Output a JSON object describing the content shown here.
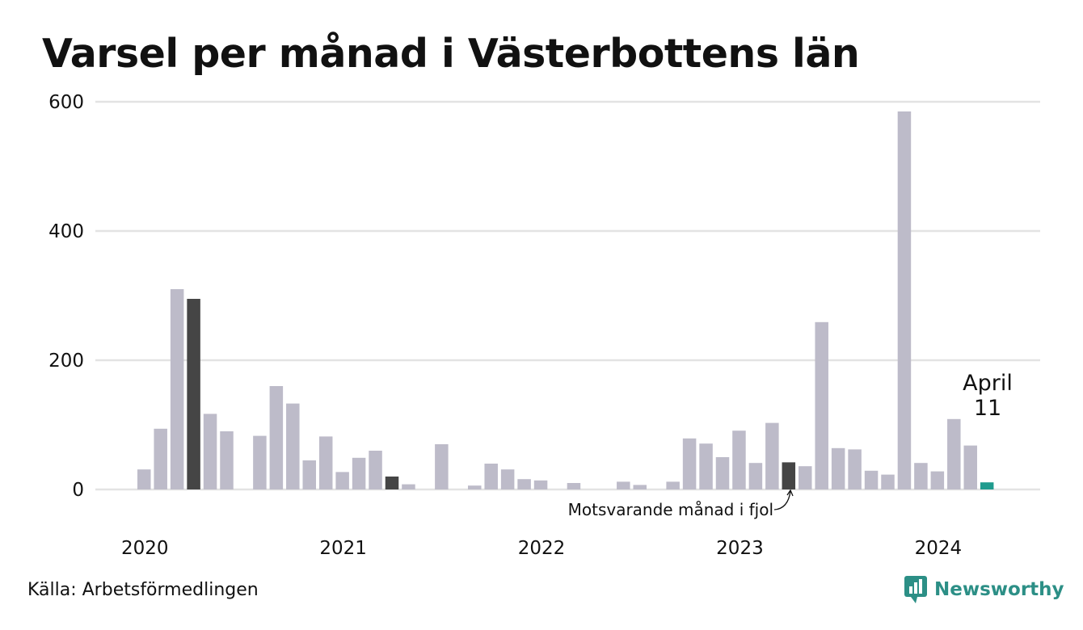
{
  "title": "Varsel per månad i Västerbottens län",
  "source": "Källa: Arbetsförmedlingen",
  "brand": "Newsworthy",
  "colors": {
    "bar": "#bdbbc9",
    "same_month_last_year": "#454545",
    "current": "#1f9b8e",
    "grid": "#e3e3e3",
    "brand": "#2c8f86"
  },
  "annotations": {
    "current_month": "April",
    "current_value": "11",
    "last_year_label": "Motsvarande månad i fjol"
  },
  "chart_data": {
    "type": "bar",
    "title": "Varsel per månad i Västerbottens län",
    "xlabel": "",
    "ylabel": "",
    "ylim": [
      0,
      600
    ],
    "yticks": [
      0,
      200,
      400,
      600
    ],
    "xticks": [
      "2020",
      "2021",
      "2022",
      "2023",
      "2024"
    ],
    "grid": true,
    "categories": [
      "2020-01",
      "2020-02",
      "2020-03",
      "2020-04",
      "2020-05",
      "2020-06",
      "2020-07",
      "2020-08",
      "2020-09",
      "2020-10",
      "2020-11",
      "2020-12",
      "2021-01",
      "2021-02",
      "2021-03",
      "2021-04",
      "2021-05",
      "2021-06",
      "2021-07",
      "2021-08",
      "2021-09",
      "2021-10",
      "2021-11",
      "2021-12",
      "2022-01",
      "2022-02",
      "2022-03",
      "2022-04",
      "2022-05",
      "2022-06",
      "2022-07",
      "2022-08",
      "2022-09",
      "2022-10",
      "2022-11",
      "2022-12",
      "2023-01",
      "2023-02",
      "2023-03",
      "2023-04",
      "2023-05",
      "2023-06",
      "2023-07",
      "2023-08",
      "2023-09",
      "2023-10",
      "2023-11",
      "2023-12",
      "2024-01",
      "2024-02",
      "2024-03",
      "2024-04"
    ],
    "values": [
      31,
      94,
      310,
      295,
      117,
      90,
      0,
      83,
      160,
      133,
      45,
      82,
      27,
      49,
      60,
      20,
      8,
      0,
      70,
      0,
      6,
      40,
      31,
      16,
      14,
      0,
      10,
      0,
      0,
      12,
      7,
      0,
      12,
      79,
      71,
      50,
      91,
      41,
      103,
      42,
      36,
      259,
      64,
      62,
      29,
      23,
      585,
      41,
      28,
      109,
      68,
      11
    ],
    "highlight_last_year": [
      "2020-04",
      "2021-04",
      "2023-04"
    ],
    "highlight_current": "2024-04"
  }
}
